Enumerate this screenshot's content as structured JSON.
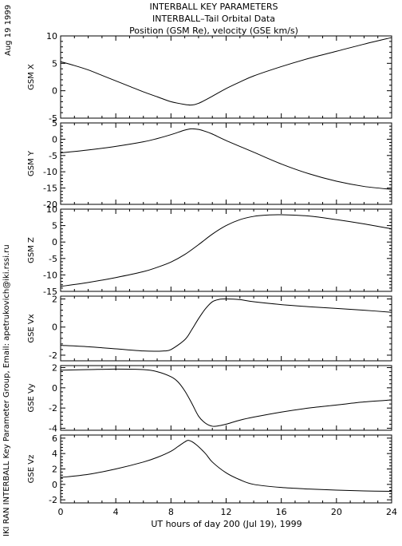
{
  "header": {
    "title_line1": "INTERBALL KEY PARAMETERS",
    "title_line2": "INTERBALL–Tail Orbital Data",
    "title_line3": "Position (GSM Re), velocity (GSE km/s)"
  },
  "side": {
    "date": "Aug 19 1999",
    "credit": "IKI RAN INTERBALL Key Parameter Group, Email: apetrukovich@iki.rssi.ru"
  },
  "chart_data": {
    "type": "line",
    "xlabel": "UT hours of day 200 (Jul 19), 1999",
    "xlim": [
      0,
      24
    ],
    "xticks": [
      0,
      4,
      8,
      12,
      16,
      20,
      24
    ],
    "grid": false,
    "panels": [
      {
        "ylabel": "GSM X",
        "ylim": [
          -5,
          10
        ],
        "yticks": [
          -5,
          0,
          5,
          10
        ],
        "x": [
          0,
          1,
          2,
          3,
          4,
          5,
          6,
          7,
          8,
          9,
          9.5,
          10,
          11,
          12,
          13,
          14,
          16,
          18,
          20,
          22,
          24
        ],
        "y": [
          5.3,
          4.6,
          3.8,
          2.8,
          1.8,
          0.8,
          -0.2,
          -1.1,
          -2.0,
          -2.5,
          -2.6,
          -2.3,
          -1.0,
          0.4,
          1.6,
          2.7,
          4.4,
          5.9,
          7.2,
          8.5,
          9.7
        ]
      },
      {
        "ylabel": "GSM Y",
        "ylim": [
          -20,
          5
        ],
        "yticks": [
          -20,
          -15,
          -10,
          -5,
          0,
          5
        ],
        "x": [
          0,
          2,
          4,
          6,
          7,
          8,
          9,
          9.5,
          10,
          10.5,
          11,
          12,
          14,
          16,
          18,
          20,
          22,
          24
        ],
        "y": [
          -4.2,
          -3.3,
          -2.2,
          -0.8,
          0.2,
          1.4,
          2.8,
          3.2,
          3.0,
          2.4,
          1.6,
          -0.4,
          -4.0,
          -7.6,
          -10.6,
          -12.9,
          -14.5,
          -15.4
        ]
      },
      {
        "ylabel": "GSM Z",
        "ylim": [
          -15,
          10
        ],
        "yticks": [
          -15,
          -10,
          -5,
          0,
          5,
          10
        ],
        "x": [
          0,
          2,
          4,
          6,
          7,
          8,
          9,
          10,
          11,
          12,
          13,
          14,
          15,
          16,
          18,
          20,
          22,
          24
        ],
        "y": [
          -13.5,
          -12.3,
          -10.8,
          -9.0,
          -7.7,
          -6.1,
          -3.8,
          -0.8,
          2.4,
          5.0,
          6.8,
          7.8,
          8.2,
          8.3,
          7.9,
          6.8,
          5.5,
          4.0
        ]
      },
      {
        "ylabel": "GSE Vx",
        "ylim": [
          -2.4,
          2.2
        ],
        "yticks": [
          -2,
          0,
          2
        ],
        "x": [
          0,
          2,
          4,
          6,
          7,
          7.5,
          8,
          9,
          9.5,
          10,
          10.5,
          11,
          11.5,
          12,
          13,
          14,
          16,
          18,
          20,
          22,
          24
        ],
        "y": [
          -1.3,
          -1.4,
          -1.55,
          -1.7,
          -1.72,
          -1.7,
          -1.6,
          -0.9,
          -0.2,
          0.6,
          1.3,
          1.8,
          1.97,
          2.0,
          1.95,
          1.8,
          1.6,
          1.45,
          1.33,
          1.2,
          1.05
        ]
      },
      {
        "ylabel": "GSE Vy",
        "ylim": [
          -4.2,
          2.2
        ],
        "yticks": [
          -4,
          -2,
          0,
          2
        ],
        "x": [
          0,
          2,
          4,
          6,
          7,
          8,
          8.5,
          9,
          9.5,
          10,
          10.5,
          11,
          11.5,
          12,
          13,
          14,
          16,
          18,
          20,
          22,
          24
        ],
        "y": [
          1.75,
          1.8,
          1.85,
          1.8,
          1.6,
          1.1,
          0.6,
          -0.3,
          -1.5,
          -2.8,
          -3.5,
          -3.8,
          -3.75,
          -3.6,
          -3.2,
          -2.9,
          -2.4,
          -2.0,
          -1.7,
          -1.4,
          -1.2
        ]
      },
      {
        "ylabel": "GSE Vz",
        "ylim": [
          -2.4,
          6.4
        ],
        "yticks": [
          -2,
          0,
          2,
          4,
          6
        ],
        "x": [
          0,
          2,
          4,
          6,
          7,
          8,
          8.5,
          9,
          9.3,
          9.8,
          10.5,
          11,
          12,
          13,
          14,
          16,
          18,
          20,
          22,
          24
        ],
        "y": [
          0.9,
          1.3,
          2.0,
          2.9,
          3.5,
          4.3,
          4.9,
          5.5,
          5.7,
          5.2,
          4.0,
          2.9,
          1.5,
          0.6,
          0.0,
          -0.4,
          -0.6,
          -0.75,
          -0.85,
          -0.9
        ]
      }
    ]
  }
}
